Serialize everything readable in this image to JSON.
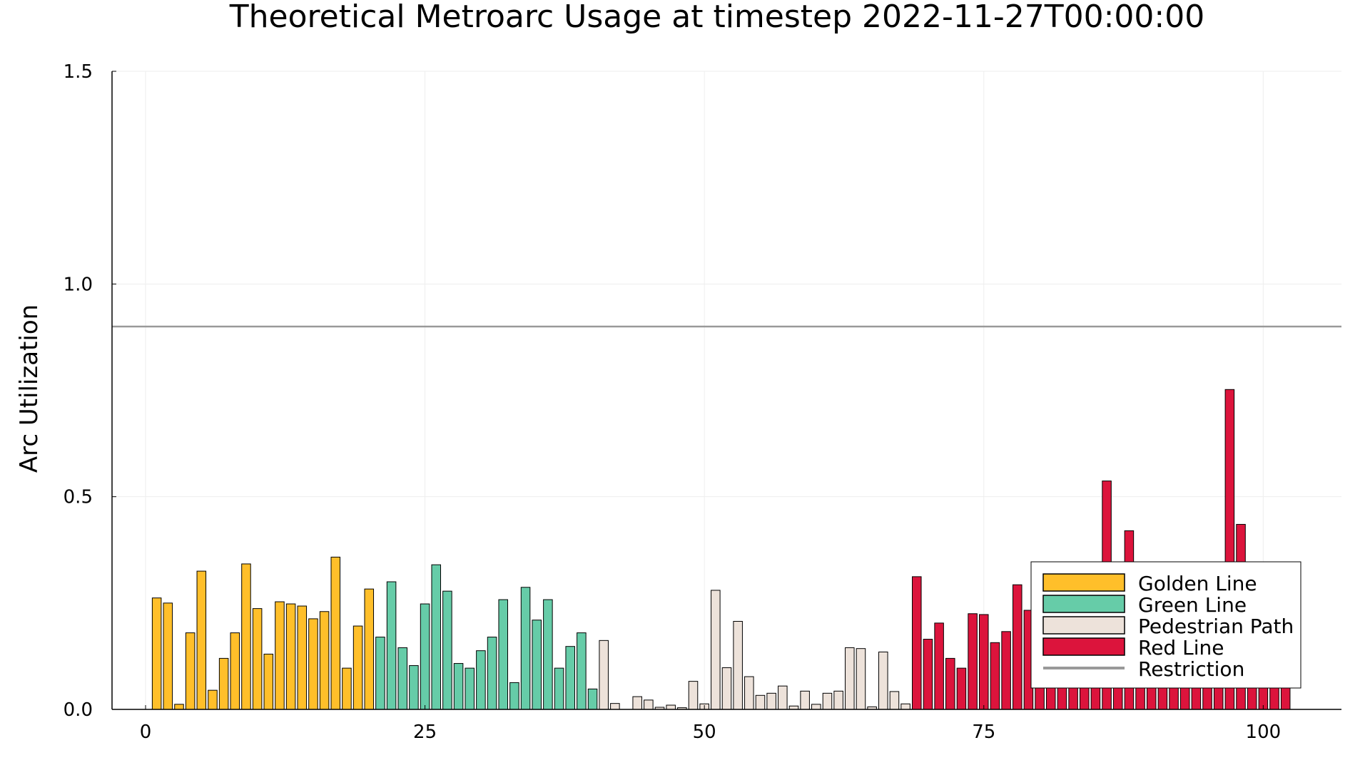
{
  "chart_data": {
    "type": "bar",
    "title": "Theoretical Metroarc Usage at timestep 2022-11-27T00:00:00",
    "xlabel": "",
    "ylabel": "Arc Utilization",
    "xlim": [
      -3,
      107
    ],
    "ylim": [
      0,
      1.5
    ],
    "xticks": [
      0,
      25,
      50,
      75,
      100
    ],
    "xtick_labels": [
      "0",
      "25",
      "50",
      "75",
      "100"
    ],
    "yticks": [
      0,
      0.5,
      1.0,
      1.5
    ],
    "ytick_labels": [
      "0.0",
      "0.5",
      "1.0",
      "1.5"
    ],
    "grid": true,
    "legend_position": "bottom-right",
    "restriction": {
      "name": "Restriction",
      "value": 0.9,
      "color": "#999999"
    },
    "series": [
      {
        "name": "Golden Line",
        "color": "#FFBF2A",
        "x": [
          1,
          2,
          3,
          4,
          5,
          6,
          7,
          8,
          9,
          10,
          11,
          12,
          13,
          14,
          15,
          16,
          17,
          18,
          19,
          20
        ],
        "values": [
          0.262,
          0.25,
          0.012,
          0.18,
          0.325,
          0.045,
          0.12,
          0.18,
          0.342,
          0.237,
          0.13,
          0.253,
          0.248,
          0.243,
          0.213,
          0.23,
          0.358,
          0.097,
          0.196,
          0.283
        ]
      },
      {
        "name": "Green Line",
        "color": "#66CCA8",
        "x": [
          21,
          22,
          23,
          24,
          25,
          26,
          27,
          28,
          29,
          30,
          31,
          32,
          33,
          34,
          35,
          36,
          37,
          38,
          39,
          40
        ],
        "values": [
          0.17,
          0.3,
          0.145,
          0.103,
          0.248,
          0.34,
          0.278,
          0.108,
          0.097,
          0.138,
          0.17,
          0.258,
          0.063,
          0.287,
          0.21,
          0.258,
          0.097,
          0.148,
          0.18,
          0.048
        ]
      },
      {
        "name": "Pedestrian Path",
        "color": "#EDE2DA",
        "x": [
          41,
          42,
          43,
          44,
          45,
          46,
          47,
          48,
          49,
          50,
          51,
          52,
          53,
          54,
          55,
          56,
          57,
          58,
          59,
          60,
          61,
          62,
          63,
          64,
          65,
          66,
          67,
          68
        ],
        "values": [
          0.162,
          0.014,
          0.0,
          0.03,
          0.022,
          0.005,
          0.01,
          0.004,
          0.066,
          0.013,
          0.28,
          0.098,
          0.207,
          0.077,
          0.033,
          0.038,
          0.055,
          0.008,
          0.043,
          0.012,
          0.038,
          0.043,
          0.145,
          0.143,
          0.006,
          0.135,
          0.042,
          0.013
        ]
      },
      {
        "name": "Red Line",
        "color": "#DC143C",
        "x": [
          69,
          70,
          71,
          72,
          73,
          74,
          75,
          76,
          77,
          78,
          79,
          80,
          81,
          82,
          83,
          84,
          85,
          86,
          87,
          88,
          89,
          90,
          91,
          92,
          93,
          94,
          95,
          96,
          97,
          98,
          99,
          100,
          101,
          102
        ],
        "values": [
          0.312,
          0.165,
          0.203,
          0.12,
          0.097,
          0.225,
          0.223,
          0.157,
          0.183,
          0.293,
          0.233,
          0.25,
          0.24,
          0.26,
          0.255,
          0.27,
          0.3,
          0.537,
          0.26,
          0.42,
          0.26,
          0.25,
          0.24,
          0.25,
          0.24,
          0.26,
          0.25,
          0.26,
          0.752,
          0.435,
          0.27,
          0.25,
          0.26,
          0.28
        ]
      }
    ]
  }
}
